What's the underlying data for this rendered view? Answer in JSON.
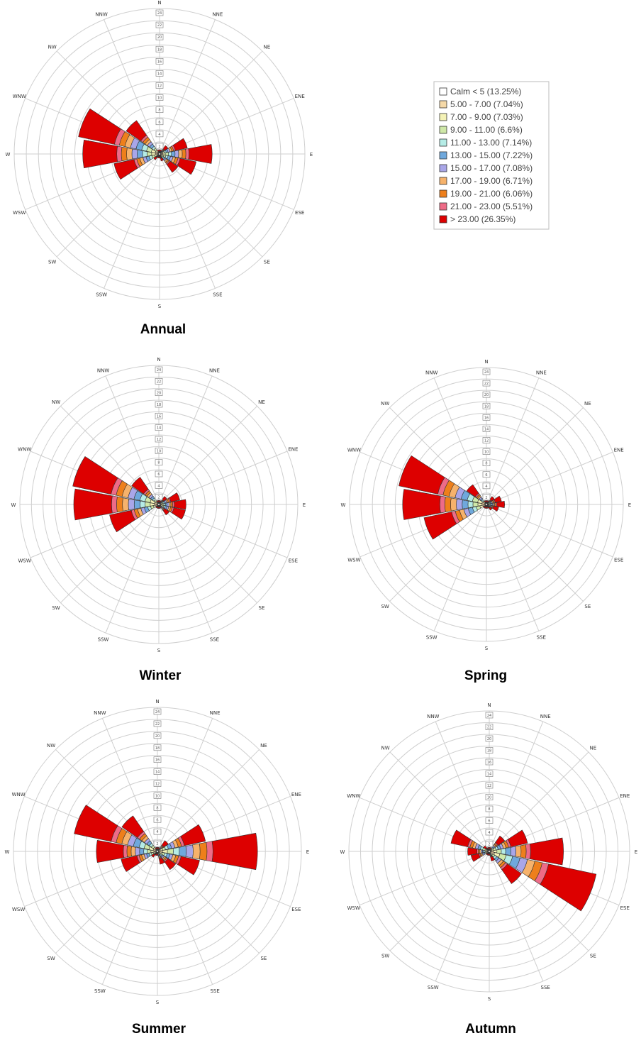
{
  "directions": [
    "N",
    "NNE",
    "NE",
    "ENE",
    "E",
    "ESE",
    "SE",
    "SSE",
    "S",
    "SSW",
    "SW",
    "WSW",
    "W",
    "WNW",
    "NW",
    "NNW"
  ],
  "ring_labels": [
    "2",
    "4",
    "6",
    "8",
    "10",
    "12",
    "14",
    "16",
    "18",
    "20",
    "22",
    "24"
  ],
  "legend": {
    "items": [
      {
        "label": "Calm < 5 (13.25%)",
        "color": "#ffffff"
      },
      {
        "label": "5.00 - 7.00 (7.04%)",
        "color": "#f5d9a8"
      },
      {
        "label": "7.00 - 9.00 (7.03%)",
        "color": "#f4f2b6"
      },
      {
        "label": "9.00 - 11.00 (6.6%)",
        "color": "#cfe8a8"
      },
      {
        "label": "11.00 - 13.00 (7.14%)",
        "color": "#b5ece6"
      },
      {
        "label": "13.00 - 15.00 (7.22%)",
        "color": "#6fa8dc"
      },
      {
        "label": "15.00 - 17.00 (7.08%)",
        "color": "#a9a6e8"
      },
      {
        "label": "17.00 - 19.00 (6.71%)",
        "color": "#f6b26b"
      },
      {
        "label": "19.00 - 21.00 (6.06%)",
        "color": "#ee7f1b"
      },
      {
        "label": "21.00 - 23.00 (5.51%)",
        "color": "#ee6b87"
      },
      {
        "label": "> 23.00 (26.35%)",
        "color": "#dd0000"
      }
    ]
  },
  "chart_data": [
    {
      "type": "windrose",
      "title": "Annual",
      "rings": 12,
      "max_ring": 24,
      "directions": [
        "N",
        "NNE",
        "NE",
        "ENE",
        "E",
        "ESE",
        "SE",
        "SSE",
        "S",
        "SSW",
        "SW",
        "WSW",
        "W",
        "WNW",
        "NW",
        "NNW"
      ],
      "frequencies": [
        0.5,
        0.5,
        1.5,
        4.5,
        8.5,
        6.0,
        3.5,
        1.0,
        0.5,
        0.5,
        1.0,
        7.5,
        12.5,
        13.5,
        6.5,
        0.5
      ]
    },
    {
      "type": "windrose",
      "title": "Winter",
      "rings": 12,
      "max_ring": 24,
      "directions": [
        "N",
        "NNE",
        "NE",
        "ENE",
        "E",
        "ESE",
        "SE",
        "SSE",
        "S",
        "SSW",
        "SW",
        "WSW",
        "W",
        "WNW",
        "NW",
        "NNW"
      ],
      "frequencies": [
        0.5,
        0.5,
        1.5,
        3.5,
        4.5,
        4.5,
        2.0,
        0.5,
        0.5,
        0.5,
        0.5,
        8.5,
        14.5,
        15.0,
        5.5,
        0.5
      ]
    },
    {
      "type": "windrose",
      "title": "Spring",
      "rings": 12,
      "max_ring": 24,
      "directions": [
        "N",
        "NNE",
        "NE",
        "ENE",
        "E",
        "ESE",
        "SE",
        "SSE",
        "S",
        "SSW",
        "SW",
        "WSW",
        "W",
        "WNW",
        "NW",
        "NNW"
      ],
      "frequencies": [
        0.5,
        0.5,
        1.5,
        2.5,
        3.0,
        2.0,
        1.0,
        0.5,
        0.5,
        0.5,
        0.5,
        11.0,
        14.5,
        15.5,
        4.0,
        0.5
      ]
    },
    {
      "type": "windrose",
      "title": "Summer",
      "rings": 12,
      "max_ring": 24,
      "directions": [
        "N",
        "NNE",
        "NE",
        "ENE",
        "E",
        "ESE",
        "SE",
        "SSE",
        "S",
        "SSW",
        "SW",
        "WSW",
        "W",
        "WNW",
        "NW",
        "NNW"
      ],
      "frequencies": [
        0.5,
        0.5,
        2.0,
        8.0,
        16.5,
        7.0,
        3.5,
        2.0,
        0.5,
        0.5,
        1.0,
        6.0,
        10.0,
        14.0,
        7.0,
        0.5
      ]
    },
    {
      "type": "windrose",
      "title": "Autumn",
      "rings": 12,
      "max_ring": 24,
      "directions": [
        "N",
        "NNE",
        "NE",
        "ENE",
        "E",
        "ESE",
        "SE",
        "SSE",
        "S",
        "SSW",
        "SW",
        "WSW",
        "W",
        "WNW",
        "NW",
        "NNW"
      ],
      "frequencies": [
        0.5,
        0.5,
        3.0,
        6.5,
        12.5,
        18.5,
        6.5,
        1.5,
        0.5,
        0.5,
        0.5,
        3.0,
        3.5,
        6.5,
        1.0,
        0.5
      ]
    }
  ]
}
